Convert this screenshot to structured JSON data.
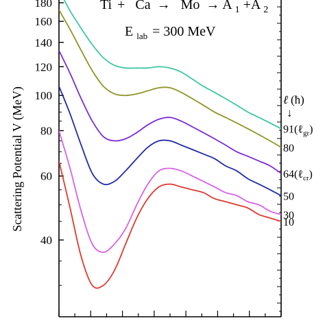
{
  "chart_data": {
    "type": "line",
    "title": "Ti + Ca → Mo → A1+A2",
    "title_parts": {
      "reactant_1": "Ti",
      "plus": "+",
      "reactant_2": "Ca",
      "arrow_1": "→",
      "compound": "Mo",
      "arrow_2": "→",
      "products_a": "A",
      "products_sub_1": "1",
      "products_plus": "+A",
      "products_sub_2": "2"
    },
    "energy_label": {
      "symbol": "E",
      "subscript": "lab",
      "value": "= 300 MeV"
    },
    "ylabel": "Scattering Potential V (MeV)",
    "xlabel": "",
    "y_scale": "log",
    "ylim": [
      27,
      180
    ],
    "yticks": [
      40,
      60,
      80,
      100,
      120,
      140,
      160,
      180
    ],
    "xlim": [
      0,
      1
    ],
    "x_ticks_shown_unlabeled": 14,
    "grid": false,
    "legend_header": {
      "symbol": "ℓ",
      "unit": "(ħ)",
      "arrow": "↓"
    },
    "series": [
      {
        "name": "91(ℓgr)",
        "label_main": "91(ℓ",
        "label_sub": "gr",
        "label_close": ")",
        "color": "#3cc7a4",
        "x": [
          0.0,
          0.05,
          0.1,
          0.15,
          0.2,
          0.25,
          0.3,
          0.35,
          0.4,
          0.45,
          0.5,
          0.55,
          0.6,
          0.65,
          0.7,
          0.75,
          0.8,
          0.85,
          0.9,
          0.95,
          1.0
        ],
        "y": [
          195,
          171,
          153,
          138,
          127,
          121,
          119,
          119,
          119,
          120,
          119,
          116,
          111,
          106,
          102,
          98,
          94,
          90,
          87,
          84,
          81
        ]
      },
      {
        "name": "80",
        "label_main": "80",
        "color": "#8e9424",
        "x": [
          0.0,
          0.05,
          0.1,
          0.15,
          0.2,
          0.25,
          0.3,
          0.35,
          0.4,
          0.45,
          0.5,
          0.55,
          0.6,
          0.65,
          0.7,
          0.75,
          0.8,
          0.85,
          0.9,
          0.95,
          1.0
        ],
        "y": [
          172,
          152,
          133,
          117,
          106,
          101,
          100,
          101,
          103,
          105,
          105,
          102,
          98,
          94,
          90,
          87,
          84,
          81,
          78,
          75,
          72
        ]
      },
      {
        "name": "64(ℓcr)",
        "label_main": "64(ℓ",
        "label_sub": "cr",
        "label_close": ")",
        "color": "#7a2bd6",
        "x": [
          0.0,
          0.05,
          0.1,
          0.15,
          0.2,
          0.25,
          0.3,
          0.35,
          0.4,
          0.45,
          0.5,
          0.55,
          0.6,
          0.65,
          0.7,
          0.75,
          0.8,
          0.85,
          0.9,
          0.95,
          1.0
        ],
        "y": [
          133,
          115,
          98,
          85,
          77,
          75,
          76,
          79,
          83,
          86,
          87,
          85,
          82,
          79,
          76,
          73,
          70,
          68,
          66,
          64,
          61
        ]
      },
      {
        "name": "50",
        "label_main": "50",
        "color": "#1f2aa6",
        "x": [
          0.0,
          0.05,
          0.1,
          0.15,
          0.2,
          0.25,
          0.3,
          0.35,
          0.4,
          0.45,
          0.5,
          0.55,
          0.6,
          0.65,
          0.7,
          0.75,
          0.8,
          0.85,
          0.9,
          0.95,
          1.0
        ],
        "y": [
          106,
          89,
          73,
          61,
          57,
          58,
          62,
          67,
          72,
          75,
          75,
          73,
          71,
          69,
          67,
          64,
          62,
          59,
          57,
          55,
          53
        ]
      },
      {
        "name": "30",
        "label_main": "30",
        "color": "#d760e8",
        "x": [
          0.0,
          0.05,
          0.1,
          0.15,
          0.2,
          0.25,
          0.3,
          0.35,
          0.4,
          0.45,
          0.5,
          0.55,
          0.6,
          0.65,
          0.7,
          0.75,
          0.8,
          0.85,
          0.9,
          0.95,
          1.0
        ],
        "y": [
          80,
          63,
          48,
          39,
          37,
          39,
          43,
          50,
          57,
          62,
          63,
          62,
          60,
          58,
          56,
          54,
          53,
          51,
          50,
          48,
          47
        ]
      },
      {
        "name": "10",
        "label_main": "10",
        "color": "#e0382f",
        "x": [
          0.0,
          0.05,
          0.1,
          0.15,
          0.2,
          0.25,
          0.3,
          0.35,
          0.4,
          0.45,
          0.5,
          0.55,
          0.6,
          0.65,
          0.7,
          0.75,
          0.8,
          0.85,
          0.9,
          0.95,
          1.0
        ],
        "y": [
          66,
          49,
          36,
          30,
          30,
          33,
          39,
          46,
          52,
          56,
          57,
          56,
          55,
          54,
          52,
          51,
          50,
          49,
          47,
          46,
          45
        ]
      }
    ]
  }
}
